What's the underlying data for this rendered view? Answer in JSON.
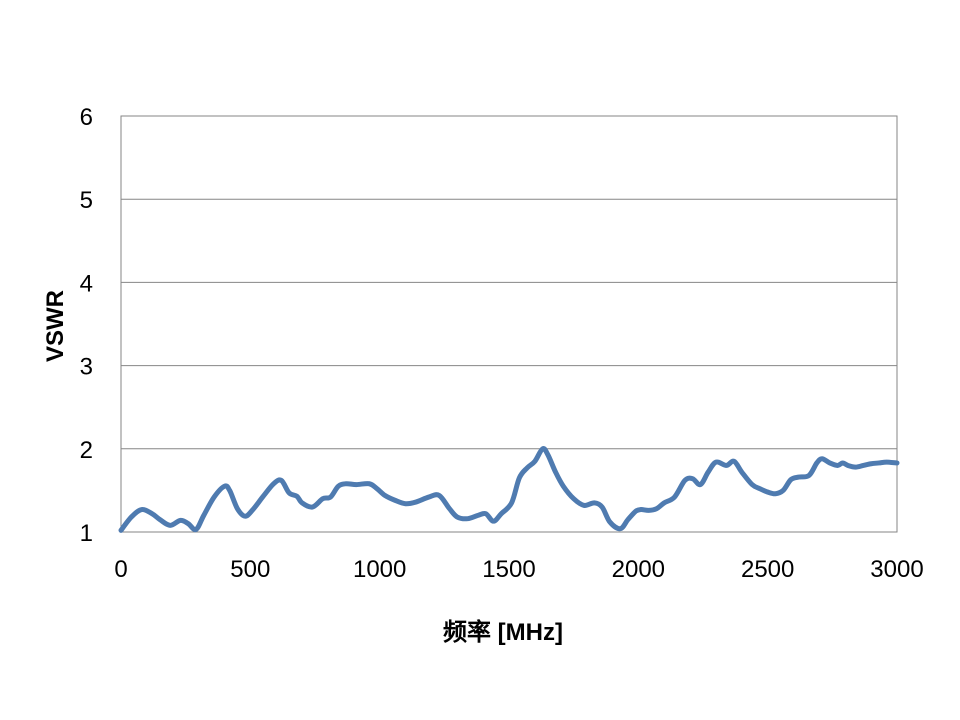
{
  "chart_data": {
    "type": "line",
    "title": "",
    "xlabel": "频率 [MHz]",
    "ylabel": "VSWR",
    "xlim": [
      0,
      3000
    ],
    "ylim": [
      1,
      6
    ],
    "x_ticks": [
      "0",
      "500",
      "1000",
      "1500",
      "2000",
      "2500",
      "3000"
    ],
    "y_ticks": [
      "1",
      "2",
      "3",
      "4",
      "5",
      "6"
    ],
    "x_tick_values": [
      0,
      500,
      1000,
      1500,
      2000,
      2500,
      3000
    ],
    "y_tick_values": [
      1,
      2,
      3,
      4,
      5,
      6
    ],
    "grid": "horizontal",
    "legend": "none",
    "series": [
      {
        "color": "#4f7bb0",
        "x": [
          0,
          40,
          80,
          120,
          150,
          190,
          230,
          260,
          290,
          320,
          360,
          400,
          420,
          450,
          480,
          510,
          550,
          590,
          620,
          650,
          680,
          700,
          740,
          780,
          810,
          840,
          870,
          910,
          960,
          990,
          1020,
          1060,
          1100,
          1140,
          1190,
          1230,
          1270,
          1300,
          1340,
          1380,
          1410,
          1440,
          1470,
          1510,
          1540,
          1570,
          1600,
          1630,
          1650,
          1680,
          1710,
          1750,
          1790,
          1830,
          1860,
          1890,
          1930,
          1960,
          1990,
          2010,
          2040,
          2070,
          2100,
          2140,
          2180,
          2210,
          2240,
          2270,
          2300,
          2340,
          2370,
          2400,
          2440,
          2470,
          2500,
          2530,
          2560,
          2590,
          2620,
          2660,
          2690,
          2710,
          2740,
          2770,
          2790,
          2810,
          2840,
          2870,
          2900,
          2930,
          2960,
          3000
        ],
        "y": [
          1.02,
          1.18,
          1.27,
          1.22,
          1.15,
          1.08,
          1.14,
          1.1,
          1.03,
          1.2,
          1.42,
          1.55,
          1.5,
          1.28,
          1.19,
          1.27,
          1.43,
          1.58,
          1.62,
          1.47,
          1.43,
          1.35,
          1.3,
          1.4,
          1.42,
          1.55,
          1.58,
          1.57,
          1.58,
          1.52,
          1.44,
          1.38,
          1.34,
          1.36,
          1.42,
          1.44,
          1.28,
          1.18,
          1.16,
          1.2,
          1.22,
          1.13,
          1.22,
          1.35,
          1.65,
          1.77,
          1.85,
          2.0,
          1.93,
          1.72,
          1.55,
          1.4,
          1.32,
          1.35,
          1.3,
          1.12,
          1.04,
          1.15,
          1.25,
          1.27,
          1.26,
          1.28,
          1.35,
          1.42,
          1.62,
          1.64,
          1.57,
          1.72,
          1.84,
          1.8,
          1.85,
          1.72,
          1.57,
          1.52,
          1.48,
          1.46,
          1.5,
          1.63,
          1.66,
          1.68,
          1.83,
          1.88,
          1.83,
          1.8,
          1.83,
          1.8,
          1.78,
          1.8,
          1.82,
          1.83,
          1.84,
          1.83
        ]
      }
    ]
  }
}
